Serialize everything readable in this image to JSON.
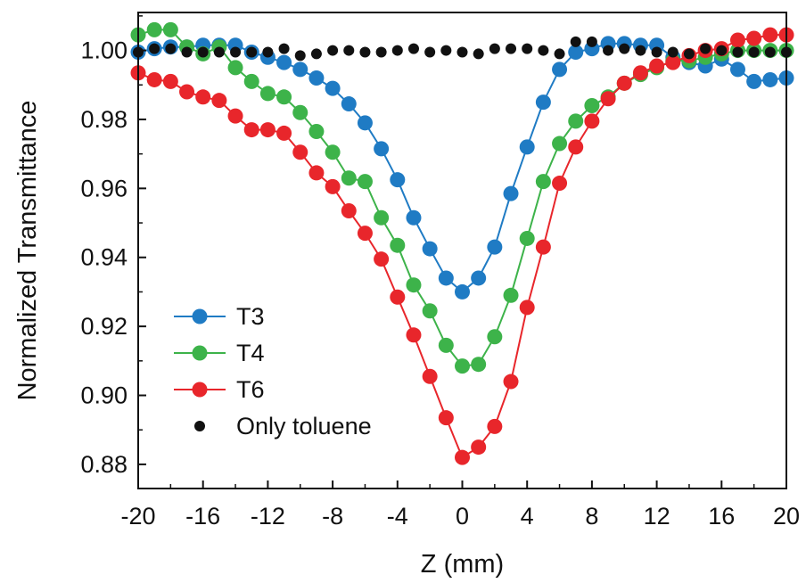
{
  "chart_data": {
    "type": "line",
    "title": "",
    "xlabel": "Z (mm)",
    "ylabel": "Normalized Transmittance",
    "xlim": [
      -20,
      20
    ],
    "ylim": [
      0.873,
      1.011
    ],
    "xticks": [
      -20,
      -16,
      -12,
      -8,
      -4,
      0,
      4,
      8,
      12,
      16,
      20
    ],
    "xtick_labels": [
      "-20",
      "-16",
      "-12",
      "-8",
      "-4",
      "0",
      "4",
      "8",
      "12",
      "16",
      "20"
    ],
    "yticks": [
      0.88,
      0.9,
      0.92,
      0.94,
      0.96,
      0.98,
      1.0
    ],
    "ytick_labels": [
      "0.88",
      "0.90",
      "0.92",
      "0.94",
      "0.96",
      "0.98",
      "1.00"
    ],
    "grid": false,
    "legend_position": "lower-left",
    "x": [
      -20,
      -19,
      -18,
      -17,
      -16,
      -15,
      -14,
      -13,
      -12,
      -11,
      -10,
      -9,
      -8,
      -7,
      -6,
      -5,
      -4,
      -3,
      -2,
      -1,
      0,
      1,
      2,
      3,
      4,
      5,
      6,
      7,
      8,
      9,
      10,
      11,
      12,
      13,
      14,
      15,
      16,
      17,
      18,
      19,
      20
    ],
    "series": [
      {
        "name": "T3",
        "color": "#1f7bc4",
        "style": "line+markers",
        "values": [
          0.9995,
          1.0005,
          1.001,
          1.001,
          1.0015,
          1.0015,
          1.0015,
          0.9995,
          0.998,
          0.9965,
          0.9945,
          0.992,
          0.989,
          0.9845,
          0.979,
          0.9715,
          0.9625,
          0.9515,
          0.9425,
          0.934,
          0.93,
          0.934,
          0.943,
          0.9585,
          0.972,
          0.985,
          0.9945,
          0.9995,
          1.0005,
          1.002,
          1.002,
          1.0015,
          1.0015,
          0.998,
          0.9965,
          0.9955,
          0.9975,
          0.9945,
          0.991,
          0.9915,
          0.992
        ]
      },
      {
        "name": "T4",
        "color": "#3db34a",
        "style": "line+markers",
        "values": [
          1.0045,
          1.006,
          1.006,
          1.001,
          0.999,
          1.001,
          0.995,
          0.991,
          0.9875,
          0.9865,
          0.982,
          0.9765,
          0.9705,
          0.963,
          0.962,
          0.9515,
          0.9435,
          0.932,
          0.9245,
          0.9145,
          0.9085,
          0.909,
          0.917,
          0.929,
          0.9455,
          0.962,
          0.973,
          0.9795,
          0.984,
          0.9865,
          0.9905,
          0.993,
          0.995,
          0.997,
          0.997,
          0.998,
          0.999,
          1.0,
          1.0,
          1.0,
          1.0
        ]
      },
      {
        "name": "T6",
        "color": "#e8262b",
        "style": "line+markers",
        "values": [
          0.9935,
          0.9915,
          0.991,
          0.988,
          0.9865,
          0.9855,
          0.981,
          0.977,
          0.977,
          0.976,
          0.9705,
          0.9645,
          0.9605,
          0.9535,
          0.947,
          0.9395,
          0.9285,
          0.9175,
          0.9055,
          0.8935,
          0.882,
          0.885,
          0.891,
          0.904,
          0.9255,
          0.943,
          0.9615,
          0.972,
          0.9795,
          0.986,
          0.9905,
          0.9935,
          0.9955,
          0.9965,
          0.9985,
          1.0,
          1.0005,
          1.003,
          1.0035,
          1.0045,
          1.0045
        ]
      },
      {
        "name": "Only toluene",
        "color": "#111111",
        "style": "markers",
        "values": [
          0.9995,
          1.0005,
          1.0005,
          0.9995,
          0.9995,
          0.9995,
          0.9995,
          0.9995,
          0.9995,
          1.0005,
          0.9985,
          0.999,
          1.0,
          1.0,
          0.9995,
          0.9995,
          1.0,
          1.0005,
          0.9995,
          1.0,
          0.9995,
          0.999,
          1.0005,
          1.0005,
          1.0005,
          1.0,
          0.999,
          1.0025,
          1.0025,
          1.0,
          1.0005,
          1.0,
          0.9995,
          0.9995,
          0.999,
          1.0005,
          1.0,
          0.9995,
          0.9995,
          0.9995,
          0.9995
        ]
      }
    ]
  }
}
